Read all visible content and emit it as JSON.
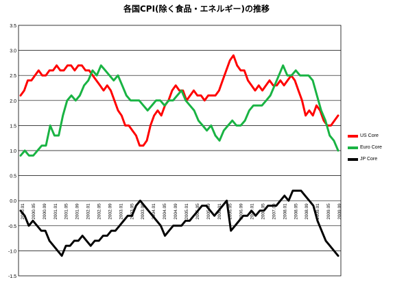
{
  "chart_data": {
    "type": "line",
    "title": "各国CPI(除く食品・エネルギー)の推移",
    "xlabel": "",
    "ylabel": "",
    "ylim": [
      -1.5,
      3.5
    ],
    "y_ticks": [
      "3.5",
      "3.0",
      "2.5",
      "2.0",
      "1.5",
      "1.0",
      "0.5",
      "0.0",
      "-0.5",
      "-1.0",
      "-1.5"
    ],
    "x_tick_labels": [
      "2000.01",
      "2000.05",
      "2000.09",
      "2001.01",
      "2001.05",
      "2001.09",
      "2002.01",
      "2002.05",
      "2002.09",
      "2003.01",
      "2003.05",
      "2003.09",
      "2004.01",
      "2004.05",
      "2004.09",
      "2005.01",
      "2005.05",
      "2005.09",
      "2006.01",
      "2006.05",
      "2006.09",
      "2007.01",
      "2007.05",
      "2007.09",
      "2008.01",
      "2008.05",
      "2008.09",
      "2009.01",
      "2009.05",
      "2009.09"
    ],
    "grid": "horizontal",
    "legend_position": "right",
    "series": [
      {
        "name": "US Core",
        "color": "#ff0000",
        "values": [
          2.1,
          2.2,
          2.4,
          2.4,
          2.5,
          2.6,
          2.5,
          2.5,
          2.6,
          2.6,
          2.7,
          2.6,
          2.6,
          2.7,
          2.7,
          2.6,
          2.7,
          2.7,
          2.6,
          2.6,
          2.5,
          2.4,
          2.3,
          2.2,
          2.3,
          2.2,
          2.0,
          1.8,
          1.7,
          1.5,
          1.5,
          1.4,
          1.3,
          1.1,
          1.1,
          1.2,
          1.5,
          1.7,
          1.8,
          1.7,
          1.9,
          2.0,
          2.2,
          2.3,
          2.2,
          2.2,
          2.0,
          2.1,
          2.2,
          2.1,
          2.1,
          2.0,
          2.1,
          2.1,
          2.1,
          2.2,
          2.4,
          2.6,
          2.8,
          2.9,
          2.7,
          2.6,
          2.6,
          2.4,
          2.3,
          2.2,
          2.3,
          2.2,
          2.3,
          2.4,
          2.3,
          2.3,
          2.4,
          2.3,
          2.4,
          2.5,
          2.4,
          2.2,
          2.0,
          1.7,
          1.8,
          1.7,
          1.9,
          1.8,
          1.6,
          1.5,
          1.5,
          1.6,
          1.7
        ]
      },
      {
        "name": "Euro Core",
        "color": "#19b343",
        "values": [
          0.9,
          1.0,
          0.9,
          0.9,
          1.0,
          1.1,
          1.1,
          1.5,
          1.3,
          1.3,
          1.7,
          2.0,
          2.1,
          2.0,
          2.1,
          2.3,
          2.4,
          2.6,
          2.5,
          2.7,
          2.6,
          2.5,
          2.4,
          2.5,
          2.3,
          2.1,
          2.0,
          2.0,
          2.0,
          1.9,
          1.8,
          1.9,
          2.0,
          2.0,
          1.9,
          2.0,
          2.0,
          2.1,
          2.2,
          2.0,
          1.9,
          1.8,
          1.6,
          1.5,
          1.4,
          1.5,
          1.3,
          1.2,
          1.4,
          1.5,
          1.6,
          1.5,
          1.5,
          1.6,
          1.8,
          1.9,
          1.9,
          1.9,
          2.0,
          2.1,
          2.3,
          2.5,
          2.7,
          2.5,
          2.5,
          2.6,
          2.5,
          2.5,
          2.5,
          2.4,
          2.1,
          1.8,
          1.6,
          1.3,
          1.2,
          1.0
        ]
      },
      {
        "name": "JP Core",
        "color": "#000000",
        "values": [
          -0.2,
          -0.3,
          -0.5,
          -0.4,
          -0.5,
          -0.6,
          -0.6,
          -0.8,
          -0.9,
          -1.0,
          -1.1,
          -0.9,
          -0.9,
          -0.8,
          -0.8,
          -0.7,
          -0.8,
          -0.9,
          -0.8,
          -0.8,
          -0.7,
          -0.7,
          -0.6,
          -0.6,
          -0.5,
          -0.4,
          -0.3,
          -0.3,
          -0.1,
          0.0,
          -0.1,
          -0.2,
          -0.3,
          -0.4,
          -0.5,
          -0.7,
          -0.6,
          -0.5,
          -0.5,
          -0.5,
          -0.4,
          -0.4,
          -0.3,
          -0.2,
          -0.1,
          -0.1,
          -0.2,
          -0.3,
          -0.2,
          -0.1,
          0.0,
          -0.6,
          -0.5,
          -0.4,
          -0.3,
          -0.3,
          -0.2,
          -0.3,
          -0.2,
          -0.2,
          -0.1,
          -0.1,
          -0.1,
          0.0,
          0.1,
          0.0,
          0.2,
          0.2,
          0.2,
          0.1,
          0.0,
          -0.1,
          -0.4,
          -0.6,
          -0.8,
          -0.9,
          -1.0,
          -1.1
        ]
      }
    ]
  }
}
